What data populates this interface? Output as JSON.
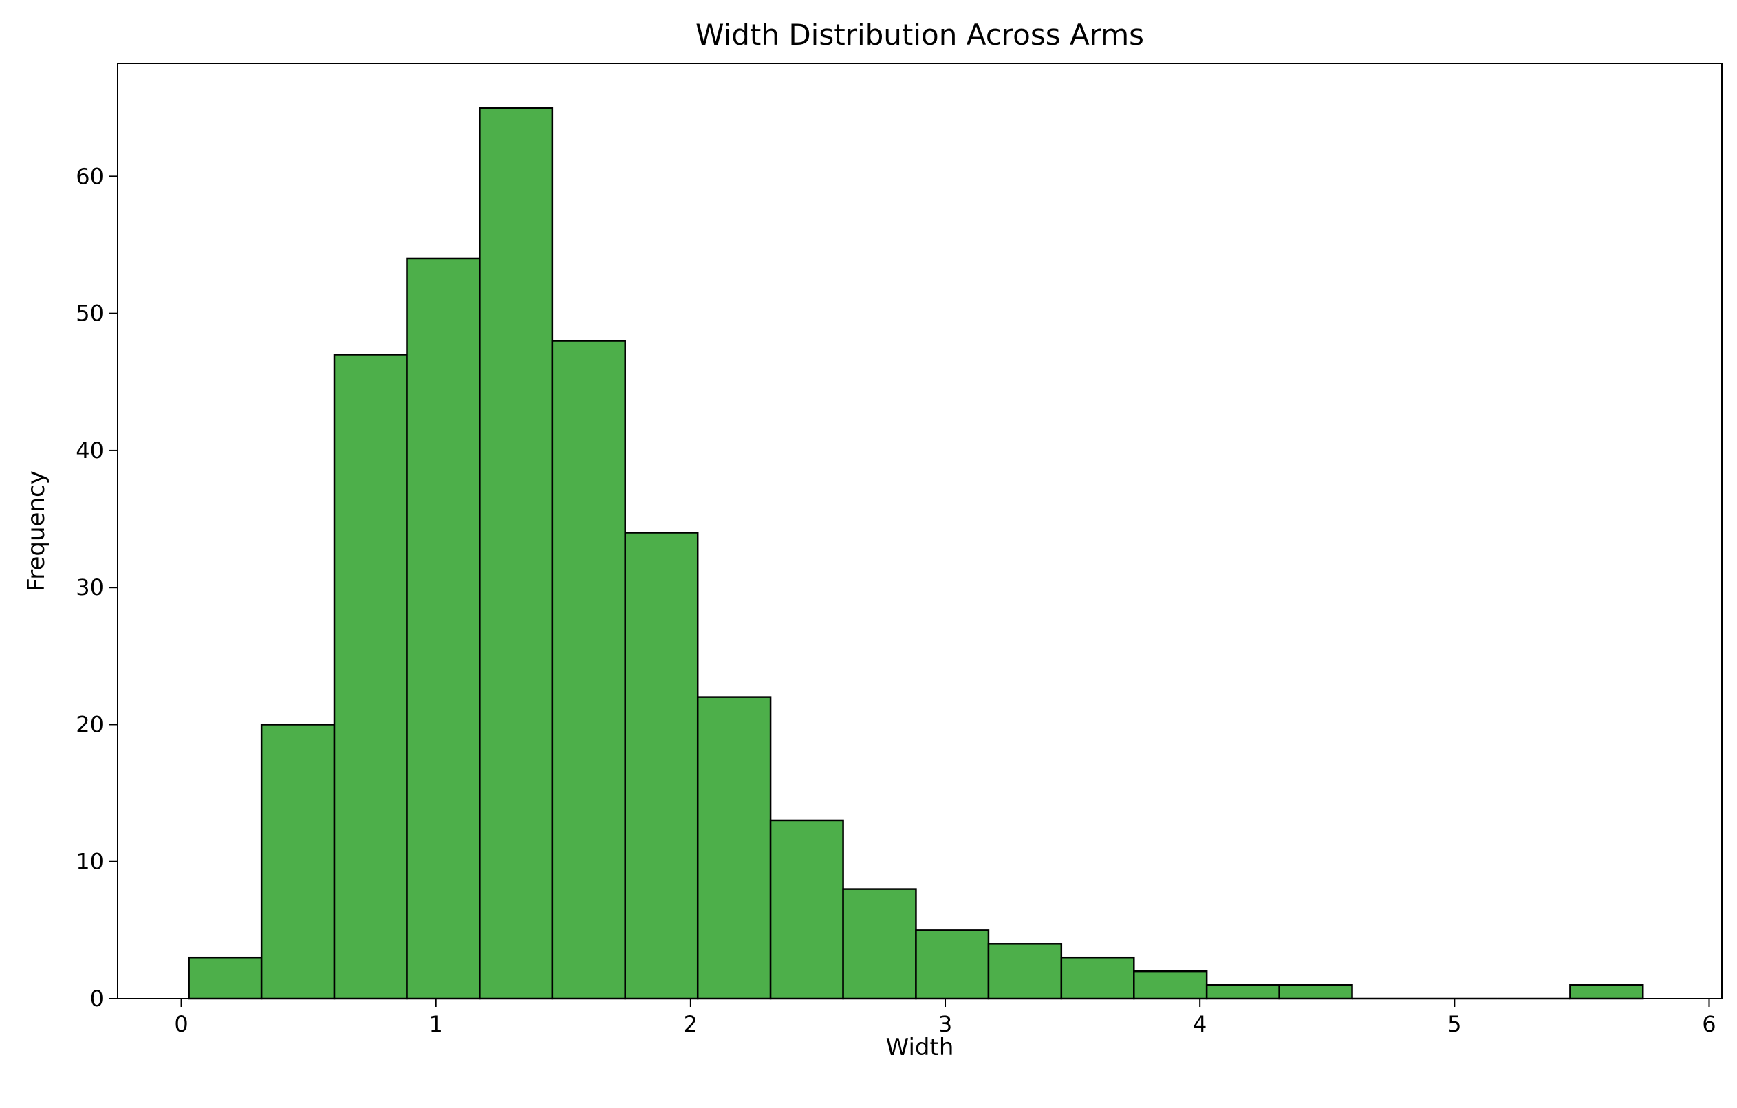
{
  "chart_data": {
    "type": "bar",
    "title": "Width Distribution Across Arms",
    "xlabel": "Width",
    "ylabel": "Frequency",
    "bar_color": "#4daf4a",
    "edge_color": "#000000",
    "xlim": [
      -0.25,
      6.05
    ],
    "ylim": [
      0,
      68.25
    ],
    "x_ticks": [
      0,
      1,
      2,
      3,
      4,
      5,
      6
    ],
    "y_ticks": [
      0,
      10,
      20,
      30,
      40,
      50,
      60
    ],
    "grid": false,
    "legend": "none",
    "bins": [
      {
        "x0": 0.03,
        "x1": 0.315,
        "count": 3
      },
      {
        "x0": 0.315,
        "x1": 0.601,
        "count": 20
      },
      {
        "x0": 0.601,
        "x1": 0.886,
        "count": 47
      },
      {
        "x0": 0.886,
        "x1": 1.172,
        "count": 54
      },
      {
        "x0": 1.172,
        "x1": 1.457,
        "count": 65
      },
      {
        "x0": 1.457,
        "x1": 1.743,
        "count": 48
      },
      {
        "x0": 1.743,
        "x1": 2.028,
        "count": 34
      },
      {
        "x0": 2.028,
        "x1": 2.314,
        "count": 22
      },
      {
        "x0": 2.314,
        "x1": 2.599,
        "count": 13
      },
      {
        "x0": 2.599,
        "x1": 2.885,
        "count": 8
      },
      {
        "x0": 2.885,
        "x1": 3.17,
        "count": 5
      },
      {
        "x0": 3.17,
        "x1": 3.456,
        "count": 4
      },
      {
        "x0": 3.456,
        "x1": 3.741,
        "count": 3
      },
      {
        "x0": 3.741,
        "x1": 4.027,
        "count": 2
      },
      {
        "x0": 4.027,
        "x1": 4.312,
        "count": 1
      },
      {
        "x0": 4.312,
        "x1": 4.598,
        "count": 1
      },
      {
        "x0": 4.598,
        "x1": 4.883,
        "count": 0
      },
      {
        "x0": 4.883,
        "x1": 5.169,
        "count": 0
      },
      {
        "x0": 5.169,
        "x1": 5.454,
        "count": 0
      },
      {
        "x0": 5.454,
        "x1": 5.74,
        "count": 1
      }
    ]
  }
}
